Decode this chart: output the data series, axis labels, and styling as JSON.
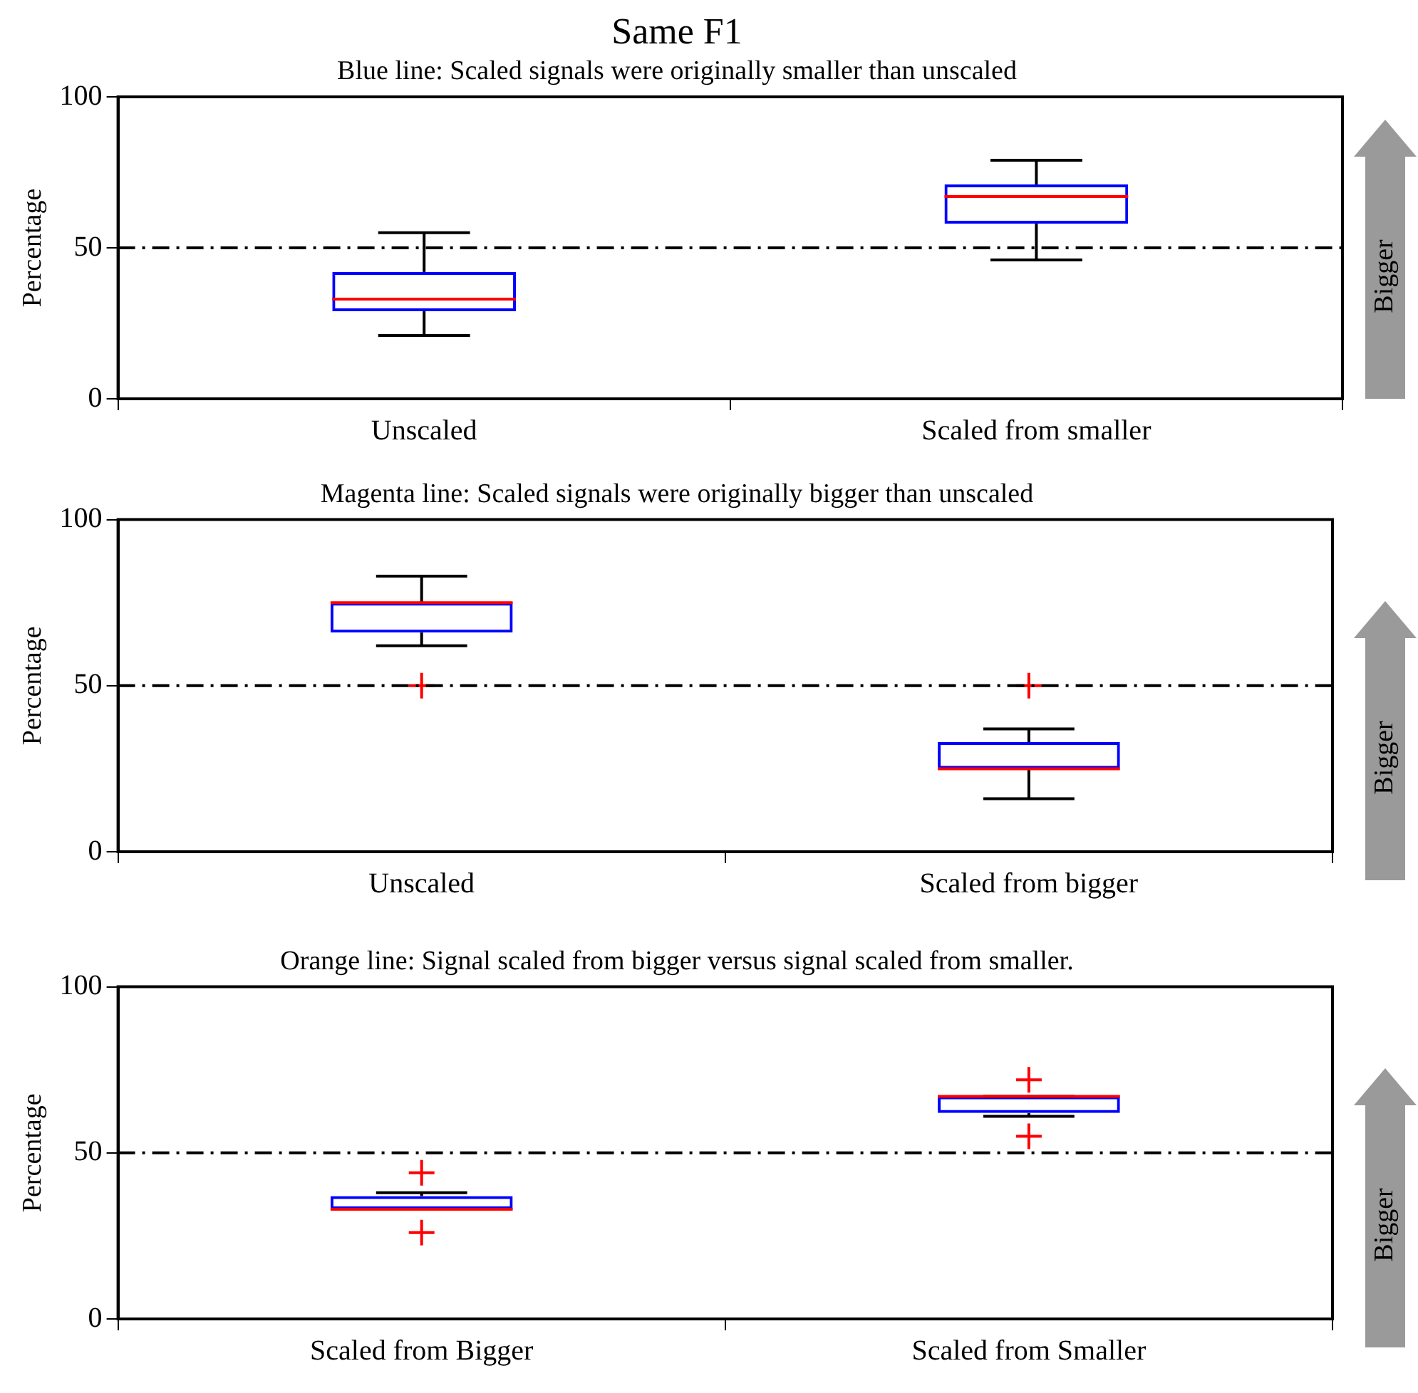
{
  "chart_data": [
    {
      "type": "box",
      "title": "Same F1",
      "subtitle": "Blue line: Scaled signals were originally smaller than unscaled",
      "ylabel": "Percentage",
      "categories": [
        "Unscaled",
        "Scaled from smaller"
      ],
      "ylim": [
        0,
        100
      ],
      "yticks": [
        0,
        50,
        100
      ],
      "grid": false,
      "legend": false,
      "ref_lines": [
        {
          "axis": "y",
          "value": 50,
          "color": "#000000",
          "line_style": "dashed"
        }
      ],
      "annotations": [
        "Bigger"
      ],
      "series": [
        {
          "color": "#0000ff",
          "boxes": [
            {
              "low": 21,
              "q1": 29,
              "median": 33,
              "q3": 42,
              "high": 55
            },
            {
              "low": 46,
              "q1": 58,
              "median": 67,
              "q3": 71,
              "high": 79
            }
          ]
        }
      ]
    },
    {
      "type": "box",
      "title": "Magenta line: Scaled signals were originally bigger than unscaled",
      "ylabel": "Percentage",
      "categories": [
        "Unscaled",
        "Scaled from bigger"
      ],
      "ylim": [
        0,
        100
      ],
      "yticks": [
        0,
        50,
        100
      ],
      "grid": false,
      "legend": false,
      "ref_lines": [
        {
          "axis": "y",
          "value": 50,
          "color": "#000000",
          "line_style": "dashed"
        }
      ],
      "annotations": [
        "Bigger"
      ],
      "series": [
        {
          "color": "#0000ff",
          "boxes": [
            {
              "low": 62,
              "q1": 66,
              "median": 75,
              "q3": 75,
              "high": 83,
              "outliers": [
                50
              ]
            },
            {
              "low": 16,
              "q1": 25,
              "median": 25,
              "q3": 33,
              "high": 37,
              "outliers": [
                50
              ]
            }
          ]
        }
      ]
    },
    {
      "type": "box",
      "title": "Orange line: Signal scaled from bigger versus signal scaled from smaller.",
      "ylabel": "Percentage",
      "categories": [
        "Scaled from Bigger",
        "Scaled from Smaller"
      ],
      "ylim": [
        0,
        100
      ],
      "yticks": [
        0,
        50,
        100
      ],
      "grid": false,
      "legend": false,
      "ref_lines": [
        {
          "axis": "y",
          "value": 50,
          "color": "#000000",
          "line_style": "dashed"
        }
      ],
      "annotations": [
        "Bigger"
      ],
      "series": [
        {
          "color": "#0000ff",
          "boxes": [
            {
              "low": 33,
              "q1": 33,
              "median": 33,
              "q3": 37,
              "high": 38,
              "outliers": [
                44,
                26
              ]
            },
            {
              "low": 61,
              "q1": 62,
              "median": 67,
              "q3": 67,
              "high": 67,
              "outliers": [
                72,
                55
              ]
            }
          ]
        }
      ]
    }
  ]
}
